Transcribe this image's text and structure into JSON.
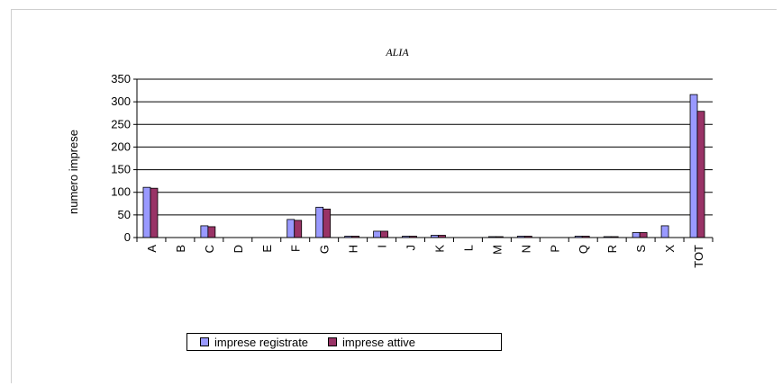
{
  "chart_data": {
    "type": "bar",
    "title": "ALIA",
    "ylabel": "numero imprese",
    "xlabel": "",
    "ylim": [
      0,
      350
    ],
    "yticks": [
      0,
      50,
      100,
      150,
      200,
      250,
      300,
      350
    ],
    "grid": true,
    "legend_position": "bottom",
    "categories": [
      "A",
      "B",
      "C",
      "D",
      "E",
      "F",
      "G",
      "H",
      "I",
      "J",
      "K",
      "L",
      "M",
      "N",
      "P",
      "Q",
      "R",
      "S",
      "X",
      "TOT"
    ],
    "series": [
      {
        "name": "imprese registrate",
        "color": "#9999ff",
        "values": [
          111,
          0,
          26,
          0,
          0,
          40,
          67,
          3,
          14,
          3,
          5,
          0,
          2,
          3,
          0,
          3,
          2,
          11,
          26,
          316
        ]
      },
      {
        "name": "imprese attive",
        "color": "#993366",
        "values": [
          109,
          0,
          24,
          0,
          0,
          38,
          63,
          3,
          14,
          3,
          5,
          0,
          2,
          3,
          0,
          3,
          2,
          11,
          0,
          279
        ]
      }
    ]
  }
}
